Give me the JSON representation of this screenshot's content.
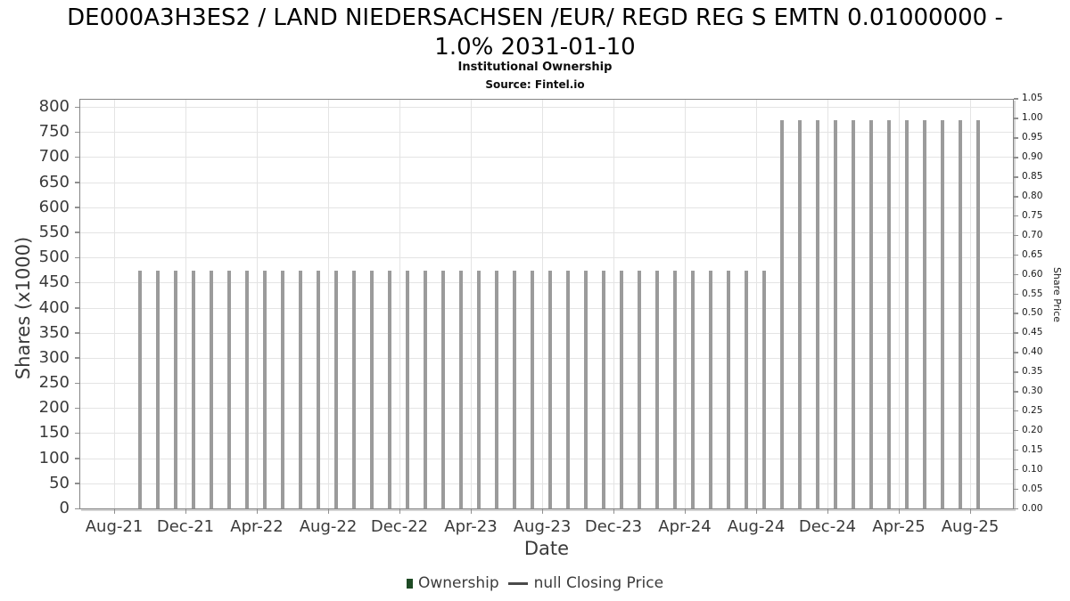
{
  "header": {
    "title_lines": [
      "DE000A3H3ES2 / LAND NIEDERSACHSEN /EUR/ REGD REG S EMTN 0.01000000 -",
      "1.0% 2031-01-10"
    ],
    "subtitle": "Institutional Ownership",
    "source": "Source: Fintel.io"
  },
  "legend": {
    "ownership_label": "Ownership",
    "closing_price_label": "null Closing Price"
  },
  "chart_data": {
    "type": "bar",
    "title": "DE000A3H3ES2 / LAND NIEDERSACHSEN /EUR/ REGD REG S EMTN 0.01000000 - 1.0% 2031-01-10",
    "subtitle": "Institutional Ownership",
    "source": "Source: Fintel.io",
    "xlabel": "Date",
    "ylabel_left": "Shares (x1000)",
    "ylabel_right": "Share Price",
    "ylim_left": [
      0,
      816
    ],
    "ylim_right": [
      0,
      1.05
    ],
    "grid": true,
    "legend_position": "bottom",
    "y_left_ticks": [
      0,
      50,
      100,
      150,
      200,
      250,
      300,
      350,
      400,
      450,
      500,
      550,
      600,
      650,
      700,
      750,
      800
    ],
    "y_right_tick_labels": [
      "0.00",
      "0.05",
      "0.10",
      "0.15",
      "0.20",
      "0.25",
      "0.30",
      "0.35",
      "0.40",
      "0.45",
      "0.50",
      "0.55",
      "0.60",
      "0.65",
      "0.70",
      "0.75",
      "0.80",
      "0.85",
      "0.90",
      "0.95",
      "1.00",
      "1.05"
    ],
    "x_tick_labels": [
      "Aug-21",
      "Dec-21",
      "Apr-22",
      "Aug-22",
      "Dec-22",
      "Apr-23",
      "Aug-23",
      "Dec-23",
      "Apr-24",
      "Aug-24",
      "Dec-24",
      "Apr-25",
      "Aug-25"
    ],
    "categories": [
      "Sep-21",
      "Oct-21",
      "Nov-21",
      "Dec-21",
      "Jan-22",
      "Feb-22",
      "Mar-22",
      "Apr-22",
      "May-22",
      "Jun-22",
      "Jul-22",
      "Aug-22",
      "Sep-22",
      "Oct-22",
      "Nov-22",
      "Dec-22",
      "Jan-23",
      "Feb-23",
      "Mar-23",
      "Apr-23",
      "May-23",
      "Jun-23",
      "Jul-23",
      "Aug-23",
      "Sep-23",
      "Oct-23",
      "Nov-23",
      "Dec-23",
      "Jan-24",
      "Feb-24",
      "Mar-24",
      "Apr-24",
      "May-24",
      "Jun-24",
      "Jul-24",
      "Aug-24",
      "Sep-24",
      "Oct-24",
      "Nov-24",
      "Dec-24",
      "Jan-25",
      "Feb-25",
      "Mar-25",
      "Apr-25",
      "May-25",
      "Jun-25",
      "Jul-25",
      "Aug-25"
    ],
    "series": [
      {
        "name": "Ownership",
        "values": [
          479,
          479,
          479,
          479,
          479,
          479,
          479,
          479,
          479,
          479,
          479,
          479,
          479,
          479,
          479,
          479,
          479,
          479,
          479,
          479,
          479,
          479,
          479,
          479,
          479,
          479,
          479,
          479,
          479,
          479,
          479,
          479,
          479,
          479,
          479,
          479,
          779,
          779,
          779,
          779,
          779,
          779,
          779,
          779,
          779,
          779,
          779,
          779
        ]
      }
    ],
    "colors": {
      "bar_dark": "#1a431f",
      "bar_light": "#2d5c33",
      "bar_shadow": "#9b9b9b",
      "gridline": "#e4e4e4",
      "axis_frame": "#858585",
      "text": "#3a3a3a"
    }
  }
}
